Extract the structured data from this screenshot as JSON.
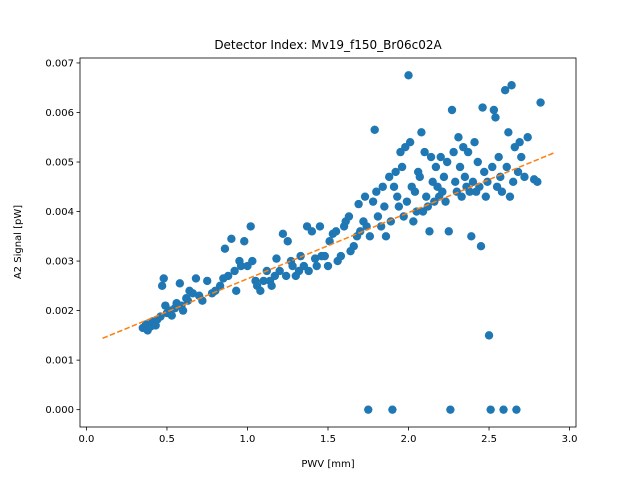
{
  "chart_data": {
    "type": "scatter",
    "title": "Detector Index: Mv19_f150_Br06c02A",
    "xlabel": "PWV [mm]",
    "ylabel": "A2 Signal [pW]",
    "xlim": [
      -0.04,
      3.04
    ],
    "ylim": [
      -0.00035,
      0.0071
    ],
    "xticks": [
      0.0,
      0.5,
      1.0,
      1.5,
      2.0,
      2.5,
      3.0
    ],
    "xtick_labels": [
      "0.0",
      "0.5",
      "1.0",
      "1.5",
      "2.0",
      "2.5",
      "3.0"
    ],
    "yticks": [
      0.0,
      0.001,
      0.002,
      0.003,
      0.004,
      0.005,
      0.006,
      0.007
    ],
    "ytick_labels": [
      "0.000",
      "0.001",
      "0.002",
      "0.003",
      "0.004",
      "0.005",
      "0.006",
      "0.007"
    ],
    "series": [
      {
        "name": "data",
        "style": "markers",
        "color": "#1f77b4",
        "points": [
          [
            0.35,
            0.00165
          ],
          [
            0.37,
            0.00172
          ],
          [
            0.38,
            0.0016
          ],
          [
            0.4,
            0.00168
          ],
          [
            0.41,
            0.00178
          ],
          [
            0.43,
            0.0017
          ],
          [
            0.44,
            0.00182
          ],
          [
            0.46,
            0.00188
          ],
          [
            0.47,
            0.0025
          ],
          [
            0.48,
            0.00265
          ],
          [
            0.49,
            0.0021
          ],
          [
            0.5,
            0.00195
          ],
          [
            0.52,
            0.002
          ],
          [
            0.53,
            0.0019
          ],
          [
            0.55,
            0.00205
          ],
          [
            0.56,
            0.00215
          ],
          [
            0.58,
            0.00255
          ],
          [
            0.59,
            0.0021
          ],
          [
            0.6,
            0.002
          ],
          [
            0.62,
            0.00225
          ],
          [
            0.63,
            0.0022
          ],
          [
            0.64,
            0.0024
          ],
          [
            0.66,
            0.00235
          ],
          [
            0.68,
            0.00265
          ],
          [
            0.7,
            0.0023
          ],
          [
            0.72,
            0.0022
          ],
          [
            0.75,
            0.0026
          ],
          [
            0.78,
            0.00235
          ],
          [
            0.8,
            0.0024
          ],
          [
            0.83,
            0.0025
          ],
          [
            0.85,
            0.00265
          ],
          [
            0.86,
            0.00325
          ],
          [
            0.88,
            0.0027
          ],
          [
            0.9,
            0.00345
          ],
          [
            0.92,
            0.0028
          ],
          [
            0.93,
            0.0024
          ],
          [
            0.95,
            0.003
          ],
          [
            0.96,
            0.0029
          ],
          [
            0.98,
            0.0034
          ],
          [
            1.0,
            0.0029
          ],
          [
            1.02,
            0.0037
          ],
          [
            1.03,
            0.003
          ],
          [
            1.05,
            0.0026
          ],
          [
            1.06,
            0.0025
          ],
          [
            1.08,
            0.0024
          ],
          [
            1.1,
            0.0026
          ],
          [
            1.12,
            0.0028
          ],
          [
            1.14,
            0.0026
          ],
          [
            1.15,
            0.0025
          ],
          [
            1.17,
            0.0027
          ],
          [
            1.18,
            0.00305
          ],
          [
            1.2,
            0.0028
          ],
          [
            1.22,
            0.00355
          ],
          [
            1.24,
            0.0027
          ],
          [
            1.25,
            0.0034
          ],
          [
            1.27,
            0.003
          ],
          [
            1.28,
            0.0029
          ],
          [
            1.3,
            0.0027
          ],
          [
            1.32,
            0.0028
          ],
          [
            1.33,
            0.0031
          ],
          [
            1.35,
            0.0029
          ],
          [
            1.37,
            0.0037
          ],
          [
            1.38,
            0.0028
          ],
          [
            1.4,
            0.0036
          ],
          [
            1.42,
            0.00305
          ],
          [
            1.43,
            0.0029
          ],
          [
            1.45,
            0.0037
          ],
          [
            1.46,
            0.0031
          ],
          [
            1.48,
            0.0031
          ],
          [
            1.5,
            0.0029
          ],
          [
            1.51,
            0.0034
          ],
          [
            1.53,
            0.00355
          ],
          [
            1.55,
            0.0036
          ],
          [
            1.56,
            0.003
          ],
          [
            1.58,
            0.0031
          ],
          [
            1.6,
            0.0037
          ],
          [
            1.61,
            0.0038
          ],
          [
            1.63,
            0.0039
          ],
          [
            1.64,
            0.0032
          ],
          [
            1.66,
            0.0033
          ],
          [
            1.68,
            0.0035
          ],
          [
            1.69,
            0.00415
          ],
          [
            1.7,
            0.0036
          ],
          [
            1.72,
            0.0038
          ],
          [
            1.73,
            0.0043
          ],
          [
            1.74,
            0.0037
          ],
          [
            1.75,
            0.0
          ],
          [
            1.76,
            0.0035
          ],
          [
            1.78,
            0.0042
          ],
          [
            1.79,
            0.00565
          ],
          [
            1.8,
            0.0044
          ],
          [
            1.81,
            0.0039
          ],
          [
            1.83,
            0.0037
          ],
          [
            1.84,
            0.0045
          ],
          [
            1.85,
            0.0041
          ],
          [
            1.86,
            0.0035
          ],
          [
            1.88,
            0.0047
          ],
          [
            1.89,
            0.0038
          ],
          [
            1.9,
            0.0
          ],
          [
            1.91,
            0.0045
          ],
          [
            1.92,
            0.0048
          ],
          [
            1.93,
            0.0043
          ],
          [
            1.94,
            0.0041
          ],
          [
            1.95,
            0.0052
          ],
          [
            1.96,
            0.0049
          ],
          [
            1.97,
            0.0039
          ],
          [
            1.98,
            0.0053
          ],
          [
            1.99,
            0.0042
          ],
          [
            2.0,
            0.00675
          ],
          [
            2.01,
            0.0054
          ],
          [
            2.02,
            0.0045
          ],
          [
            2.03,
            0.0038
          ],
          [
            2.04,
            0.0044
          ],
          [
            2.05,
            0.004
          ],
          [
            2.06,
            0.0048
          ],
          [
            2.07,
            0.0047
          ],
          [
            2.08,
            0.0056
          ],
          [
            2.09,
            0.004
          ],
          [
            2.1,
            0.0052
          ],
          [
            2.11,
            0.0043
          ],
          [
            2.12,
            0.0041
          ],
          [
            2.13,
            0.0036
          ],
          [
            2.14,
            0.0051
          ],
          [
            2.15,
            0.0046
          ],
          [
            2.16,
            0.0042
          ],
          [
            2.17,
            0.0049
          ],
          [
            2.18,
            0.0045
          ],
          [
            2.19,
            0.0043
          ],
          [
            2.2,
            0.0051
          ],
          [
            2.21,
            0.0044
          ],
          [
            2.22,
            0.0047
          ],
          [
            2.23,
            0.0042
          ],
          [
            2.24,
            0.005
          ],
          [
            2.25,
            0.0036
          ],
          [
            2.26,
            0.0
          ],
          [
            2.27,
            0.00605
          ],
          [
            2.28,
            0.0052
          ],
          [
            2.29,
            0.0046
          ],
          [
            2.3,
            0.0044
          ],
          [
            2.31,
            0.0055
          ],
          [
            2.32,
            0.0049
          ],
          [
            2.33,
            0.0043
          ],
          [
            2.34,
            0.0053
          ],
          [
            2.35,
            0.0047
          ],
          [
            2.36,
            0.0045
          ],
          [
            2.37,
            0.0052
          ],
          [
            2.38,
            0.0044
          ],
          [
            2.39,
            0.0035
          ],
          [
            2.4,
            0.0046
          ],
          [
            2.41,
            0.0054
          ],
          [
            2.42,
            0.0044
          ],
          [
            2.43,
            0.005
          ],
          [
            2.44,
            0.0045
          ],
          [
            2.45,
            0.0033
          ],
          [
            2.46,
            0.0061
          ],
          [
            2.47,
            0.0048
          ],
          [
            2.48,
            0.0043
          ],
          [
            2.49,
            0.0046
          ],
          [
            2.5,
            0.0015
          ],
          [
            2.51,
            0.0
          ],
          [
            2.52,
            0.0049
          ],
          [
            2.53,
            0.00605
          ],
          [
            2.54,
            0.0059
          ],
          [
            2.55,
            0.0045
          ],
          [
            2.56,
            0.0051
          ],
          [
            2.57,
            0.0047
          ],
          [
            2.58,
            0.0044
          ],
          [
            2.59,
            0.0
          ],
          [
            2.6,
            0.00645
          ],
          [
            2.61,
            0.0049
          ],
          [
            2.62,
            0.0056
          ],
          [
            2.63,
            0.0043
          ],
          [
            2.64,
            0.00655
          ],
          [
            2.65,
            0.0046
          ],
          [
            2.66,
            0.0053
          ],
          [
            2.67,
            0.0
          ],
          [
            2.68,
            0.0048
          ],
          [
            2.69,
            0.0054
          ],
          [
            2.7,
            0.0051
          ],
          [
            2.72,
            0.0047
          ],
          [
            2.74,
            0.0055
          ],
          [
            2.78,
            0.00465
          ],
          [
            2.8,
            0.0046
          ],
          [
            2.82,
            0.0062
          ]
        ]
      },
      {
        "name": "fit",
        "style": "dashed-line",
        "color": "#ff7f0e",
        "x": [
          0.1,
          2.9
        ],
        "y": [
          0.00144,
          0.00518
        ]
      }
    ],
    "grid": false,
    "legend": "none"
  }
}
